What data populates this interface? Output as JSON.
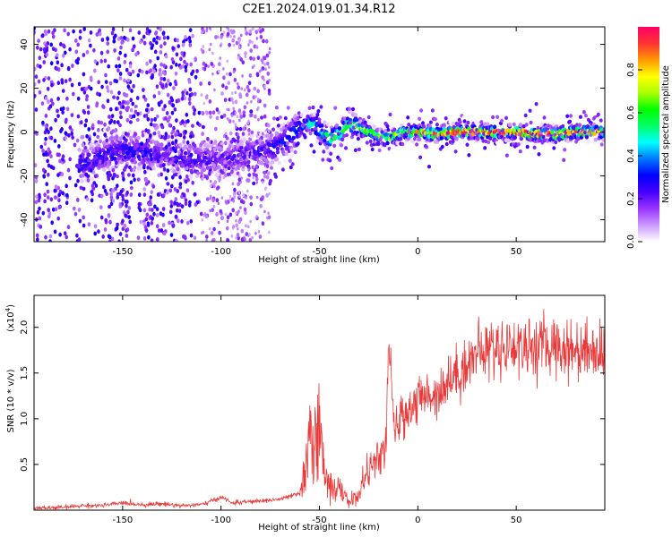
{
  "title": "C2E1.2024.019.01.34.R12",
  "chart_data": [
    {
      "type": "heatmap",
      "xlabel": "Height of straight line (km)",
      "ylabel": "Frequency (Hz)",
      "xlim": [
        -195,
        95
      ],
      "ylim": [
        -50,
        48
      ],
      "xticks": [
        -150,
        -100,
        -50,
        0,
        50
      ],
      "yticks": [
        -40,
        -20,
        0,
        20,
        40
      ],
      "colorbar": {
        "label": "Normalized spectral amplitude",
        "range": [
          0,
          1
        ],
        "ticks": [
          "0.0",
          "0.2",
          "0.4",
          "0.6",
          "0.8"
        ],
        "colors": [
          "#ffffff",
          "#cc99ff",
          "#9933ff",
          "#4400ff",
          "#0000ff",
          "#0077ff",
          "#00ffff",
          "#00ff66",
          "#00ff00",
          "#aaff00",
          "#ffff00",
          "#ff9900",
          "#ff3333",
          "#ff0066"
        ]
      },
      "ridge": {
        "x": [
          -172,
          -160,
          -150,
          -140,
          -130,
          -120,
          -110,
          -100,
          -90,
          -80,
          -70,
          -60,
          -55,
          -50,
          -45,
          -40,
          -35,
          -30,
          -25,
          -20,
          -15,
          -10,
          -5,
          0,
          10,
          20,
          30,
          40,
          50,
          60,
          70,
          80,
          93
        ],
        "frequency": [
          -15,
          -11,
          -8,
          -9,
          -10,
          -12,
          -13,
          -12,
          -11,
          -9,
          -6,
          2,
          4,
          1,
          -3,
          -1,
          4,
          2,
          0,
          -2,
          -3,
          -1,
          0,
          0,
          -1,
          0,
          0,
          0,
          0,
          -1,
          -1,
          0,
          0
        ],
        "amplitude": [
          0.3,
          0.25,
          0.25,
          0.28,
          0.2,
          0.22,
          0.25,
          0.2,
          0.22,
          0.25,
          0.3,
          0.35,
          0.45,
          0.5,
          0.55,
          0.55,
          0.6,
          0.62,
          0.65,
          0.65,
          0.68,
          0.72,
          0.75,
          0.8,
          0.85,
          0.9,
          0.9,
          0.92,
          0.92,
          0.9,
          0.88,
          0.85,
          0.8
        ]
      }
    },
    {
      "type": "line",
      "xlabel": "Height of straight line (km)",
      "ylabel": "SNR (10 * v/v)",
      "yscale_note": "(x10",
      "yscale_exp": "4",
      "yscale_close": ")",
      "xlim": [
        -195,
        95
      ],
      "ylim": [
        0,
        2.35
      ],
      "xticks": [
        -150,
        -100,
        -50,
        0,
        50
      ],
      "yticks": [
        0.5,
        1.0,
        1.5,
        2.0
      ],
      "yticklabels": [
        "0.5",
        "1.0",
        "1.5",
        "2.0"
      ],
      "color": "#e83a3a",
      "series": [
        {
          "x": [
            -195,
            -180,
            -170,
            -160,
            -150,
            -140,
            -130,
            -120,
            -110,
            -102,
            -100,
            -95,
            -80,
            -70,
            -60,
            -56,
            -54,
            -52,
            -50,
            -48,
            -45,
            -40,
            -35,
            -30,
            -28,
            -25,
            -20,
            -16,
            -15,
            -12,
            -10,
            -5,
            0,
            5,
            10,
            15,
            20,
            25,
            30,
            35,
            40,
            50,
            60,
            70,
            80,
            90,
            94
          ],
          "y": [
            0.02,
            0.03,
            0.05,
            0.05,
            0.08,
            0.06,
            0.07,
            0.05,
            0.06,
            0.12,
            0.15,
            0.08,
            0.1,
            0.12,
            0.18,
            0.5,
            0.85,
            0.95,
            0.8,
            0.5,
            0.3,
            0.22,
            0.1,
            0.15,
            0.3,
            0.45,
            0.55,
            0.7,
            1.9,
            0.85,
            0.95,
            1.1,
            1.2,
            1.25,
            1.3,
            1.4,
            1.5,
            1.6,
            1.72,
            1.75,
            1.78,
            1.8,
            1.78,
            1.8,
            1.75,
            1.78,
            1.7
          ]
        }
      ]
    }
  ]
}
